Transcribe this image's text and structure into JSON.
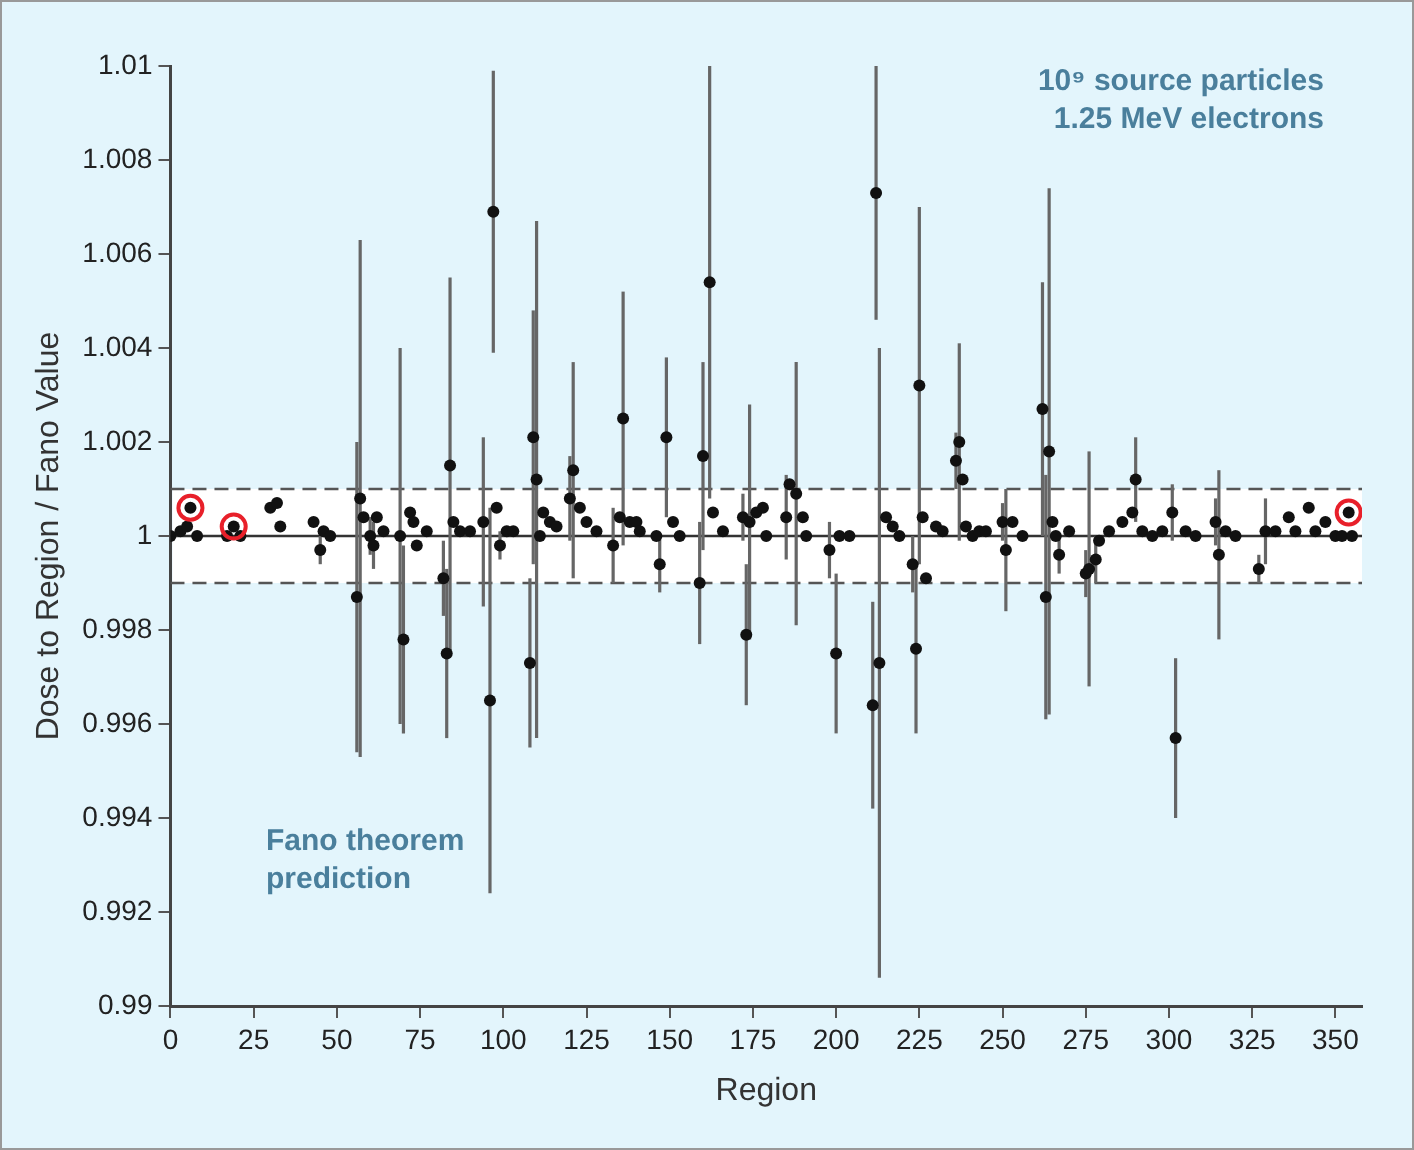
{
  "chart_data": {
    "type": "scatter",
    "xlabel": "Region",
    "ylabel": "Dose to Region / Fano Value",
    "xlim": [
      0,
      358
    ],
    "xticks": [
      0,
      25,
      50,
      75,
      100,
      125,
      150,
      175,
      200,
      225,
      250,
      275,
      300,
      325,
      350
    ],
    "ylim": [
      0.99,
      1.01
    ],
    "yticks": [
      0.99,
      0.992,
      0.994,
      0.996,
      0.998,
      1,
      1.002,
      1.004,
      1.006,
      1.008,
      1.01
    ],
    "grid": false,
    "legend": false,
    "marker": "circle",
    "series": [
      {
        "color": "#111111",
        "x": [
          0,
          3,
          5,
          6,
          8,
          17,
          19,
          21,
          30,
          32,
          33,
          43,
          45,
          46,
          48,
          56,
          57,
          58,
          60,
          61,
          62,
          64,
          69,
          70,
          72,
          73,
          74,
          77,
          82,
          83,
          84,
          85,
          87,
          90,
          94,
          96,
          97,
          98,
          99,
          101,
          103,
          108,
          109,
          110,
          111,
          112,
          114,
          116,
          120,
          121,
          123,
          125,
          128,
          133,
          135,
          136,
          138,
          140,
          141,
          146,
          147,
          149,
          151,
          153,
          159,
          160,
          162,
          163,
          166,
          172,
          173,
          174,
          176,
          178,
          179,
          185,
          186,
          188,
          190,
          191,
          198,
          200,
          201,
          204,
          211,
          212,
          213,
          215,
          217,
          219,
          223,
          224,
          225,
          226,
          227,
          230,
          232,
          236,
          237,
          238,
          239,
          241,
          243,
          245,
          250,
          251,
          253,
          256,
          262,
          263,
          264,
          265,
          266,
          267,
          270,
          275,
          276,
          278,
          279,
          282,
          286,
          289,
          290,
          292,
          295,
          298,
          301,
          302,
          305,
          308,
          314,
          315,
          317,
          320,
          327,
          329,
          332,
          336,
          338,
          342,
          344,
          347,
          350,
          352,
          354,
          355
        ],
        "values": [
          1.0,
          1.0001,
          1.0002,
          1.0006,
          1.0,
          1.0,
          1.0002,
          1.0,
          1.0006,
          1.0007,
          1.0002,
          1.0003,
          0.9997,
          1.0001,
          1.0,
          0.9987,
          1.0008,
          1.0004,
          1.0,
          0.9998,
          1.0004,
          1.0001,
          1.0,
          0.9978,
          1.0005,
          1.0003,
          0.9998,
          1.0001,
          0.9991,
          0.9975,
          1.0015,
          1.0003,
          1.0001,
          1.0001,
          1.0003,
          0.9965,
          1.0069,
          1.0006,
          0.9998,
          1.0001,
          1.0001,
          0.9973,
          1.0021,
          1.0012,
          1.0,
          1.0005,
          1.0003,
          1.0002,
          1.0008,
          1.0014,
          1.0006,
          1.0003,
          1.0001,
          0.9998,
          1.0004,
          1.0025,
          1.0003,
          1.0003,
          1.0001,
          1.0,
          0.9994,
          1.0021,
          1.0003,
          1.0,
          0.999,
          1.0017,
          1.0054,
          1.0005,
          1.0001,
          1.0004,
          0.9979,
          1.0003,
          1.0005,
          1.0006,
          1.0,
          1.0004,
          1.0011,
          1.0009,
          1.0004,
          1.0,
          0.9997,
          0.9975,
          1.0,
          1.0,
          0.9964,
          1.0073,
          0.9973,
          1.0004,
          1.0002,
          1.0,
          0.9994,
          0.9976,
          1.0032,
          1.0004,
          0.9991,
          1.0002,
          1.0001,
          1.0016,
          1.002,
          1.0012,
          1.0002,
          1.0,
          1.0001,
          1.0001,
          1.0003,
          0.9997,
          1.0003,
          1.0,
          1.0027,
          0.9987,
          1.0018,
          1.0003,
          1.0,
          0.9996,
          1.0001,
          0.9992,
          0.9993,
          0.9995,
          0.9999,
          1.0001,
          1.0003,
          1.0005,
          1.0012,
          1.0001,
          1.0,
          1.0001,
          1.0005,
          0.9957,
          1.0001,
          1.0,
          1.0003,
          0.9996,
          1.0001,
          1.0,
          0.9993,
          1.0001,
          1.0001,
          1.0004,
          1.0001,
          1.0006,
          1.0001,
          1.0003,
          1.0,
          1.0,
          1.0005,
          1.0
        ],
        "errors": [
          null,
          null,
          null,
          null,
          null,
          null,
          null,
          null,
          null,
          null,
          null,
          null,
          0.0003,
          null,
          null,
          0.0033,
          0.0055,
          null,
          0.0004,
          0.0005,
          null,
          null,
          0.004,
          0.002,
          null,
          null,
          null,
          null,
          0.0008,
          0.0018,
          0.004,
          null,
          null,
          null,
          0.0018,
          0.0041,
          0.003,
          null,
          0.0003,
          null,
          null,
          0.0018,
          0.0027,
          0.0055,
          null,
          null,
          null,
          null,
          0.0009,
          0.0023,
          null,
          null,
          null,
          0.0008,
          null,
          0.0027,
          null,
          null,
          null,
          null,
          0.0006,
          0.0017,
          null,
          null,
          0.0013,
          0.002,
          0.0046,
          null,
          null,
          0.0005,
          0.0015,
          0.0025,
          null,
          null,
          null,
          0.0009,
          null,
          0.0028,
          null,
          null,
          0.0006,
          0.0017,
          null,
          null,
          0.0022,
          0.0027,
          0.0067,
          null,
          null,
          null,
          0.0006,
          0.0018,
          0.0038,
          null,
          null,
          null,
          null,
          0.0006,
          0.0021,
          null,
          null,
          null,
          null,
          null,
          0.0004,
          0.0013,
          null,
          null,
          0.0027,
          0.0026,
          0.0056,
          null,
          null,
          0.0004,
          null,
          0.0005,
          0.0025,
          0.0005,
          null,
          null,
          null,
          null,
          0.0009,
          null,
          null,
          null,
          0.0006,
          0.0017,
          null,
          null,
          0.0005,
          0.0018,
          null,
          null,
          0.0003,
          0.0007,
          null,
          null,
          null,
          null,
          null,
          null,
          null,
          null,
          null,
          null
        ]
      },
      {
        "color": "#e8202a",
        "x": [
          6,
          19,
          354
        ],
        "values": [
          1.0006,
          1.0002,
          1.0005
        ]
      }
    ],
    "bands": [
      {
        "axis": "y",
        "from": 0.999,
        "to": 1.001,
        "color": "#ffffff"
      }
    ],
    "ref_lines": [
      {
        "axis": "y",
        "value": 1.001,
        "line_style": "dashed",
        "color": "#555555"
      },
      {
        "axis": "y",
        "value": 0.999,
        "line_style": "dashed",
        "color": "#555555"
      },
      {
        "axis": "y",
        "value": 1,
        "line_style": "solid",
        "color": "#333333"
      }
    ],
    "annotations": [
      "10⁹ source particles\n1.25 MeV electrons",
      "Fano theorem\nprediction"
    ]
  }
}
